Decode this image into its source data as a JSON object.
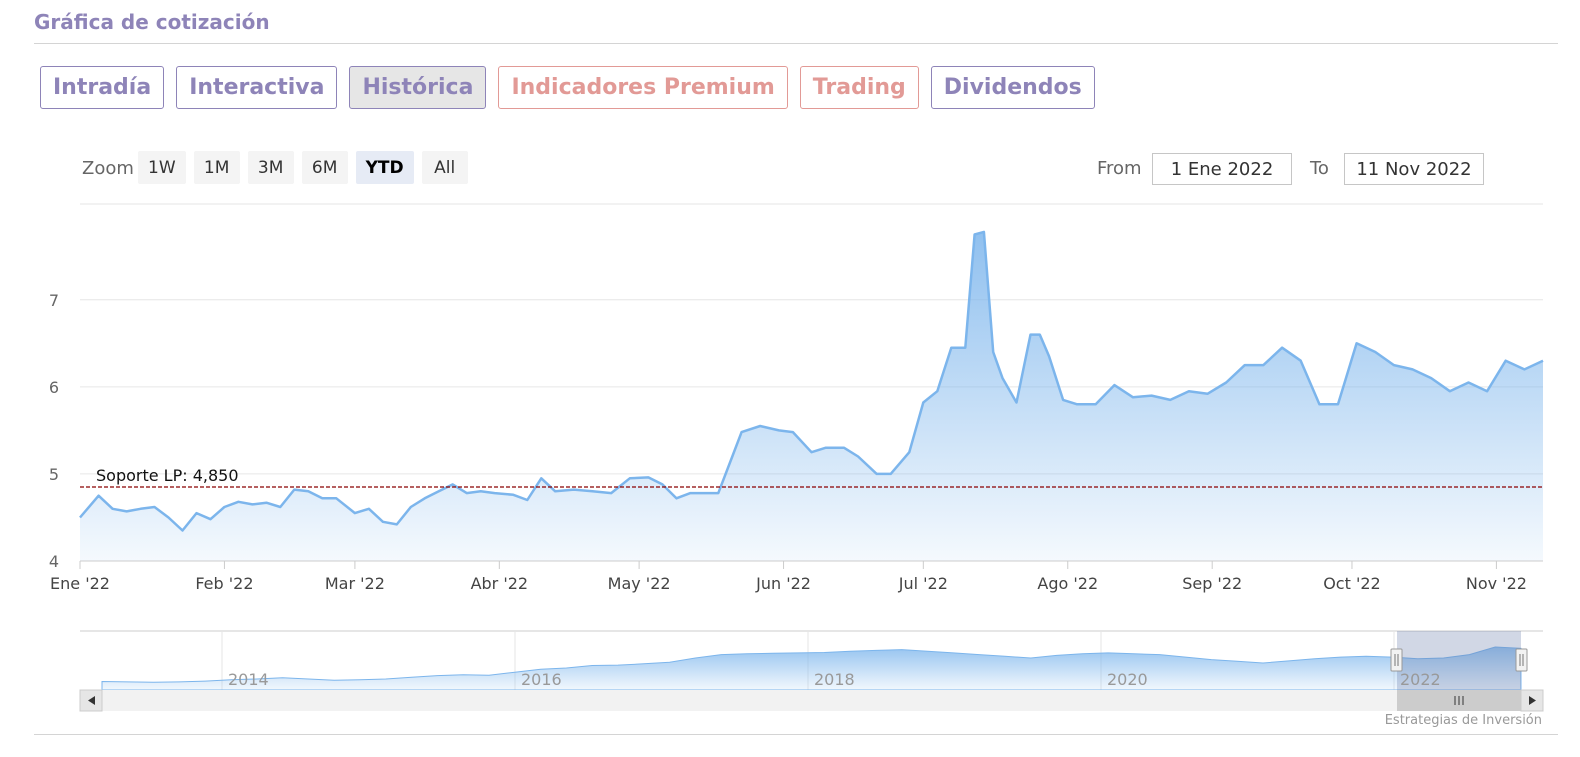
{
  "page": {
    "title": "Gráfica de cotización",
    "credit": "Estrategias de Inversión"
  },
  "tabs": [
    {
      "label": "Intradía",
      "active": false,
      "premium": false
    },
    {
      "label": "Interactiva",
      "active": false,
      "premium": false
    },
    {
      "label": "Histórica",
      "active": true,
      "premium": false
    },
    {
      "label": "Indicadores Premium",
      "active": false,
      "premium": true
    },
    {
      "label": "Trading",
      "active": false,
      "premium": true
    },
    {
      "label": "Dividendos",
      "active": false,
      "premium": false
    }
  ],
  "zoom": {
    "label": "Zoom",
    "options": [
      "1W",
      "1M",
      "3M",
      "6M",
      "YTD",
      "All"
    ],
    "selected": "YTD"
  },
  "range": {
    "from_label": "From",
    "from_value": "1 Ene 2022",
    "to_label": "To",
    "to_value": "11 Nov 2022"
  },
  "colors": {
    "accent": "#8e84b8",
    "premium": "#e29a96",
    "series": "#7cb5ec",
    "support_line": "#8b0000"
  },
  "chart_data": {
    "type": "area",
    "xlabel": "",
    "ylabel": "",
    "x_tick_labels": [
      "Ene '22",
      "Feb '22",
      "Mar '22",
      "Abr '22",
      "May '22",
      "Jun '22",
      "Jul '22",
      "Ago '22",
      "Sep '22",
      "Oct '22",
      "Nov '22"
    ],
    "y_tick_labels": [
      "4",
      "5",
      "6",
      "7"
    ],
    "ylim": [
      4,
      8.1
    ],
    "grid": true,
    "support": {
      "label": "Soporte LP: 4,850",
      "value": 4.85
    },
    "series": [
      {
        "x": [
          "2022-01-01",
          "2022-01-05",
          "2022-01-08",
          "2022-01-11",
          "2022-01-14",
          "2022-01-17",
          "2022-01-20",
          "2022-01-23",
          "2022-01-26",
          "2022-01-29",
          "2022-02-01",
          "2022-02-04",
          "2022-02-07",
          "2022-02-10",
          "2022-02-13",
          "2022-02-16",
          "2022-02-19",
          "2022-02-22",
          "2022-02-25",
          "2022-03-01",
          "2022-03-04",
          "2022-03-07",
          "2022-03-10",
          "2022-03-13",
          "2022-03-16",
          "2022-03-19",
          "2022-03-22",
          "2022-03-25",
          "2022-03-28",
          "2022-03-31",
          "2022-04-04",
          "2022-04-07",
          "2022-04-10",
          "2022-04-13",
          "2022-04-17",
          "2022-04-21",
          "2022-04-25",
          "2022-04-29",
          "2022-05-03",
          "2022-05-06",
          "2022-05-09",
          "2022-05-12",
          "2022-05-15",
          "2022-05-18",
          "2022-05-21",
          "2022-05-23",
          "2022-05-27",
          "2022-05-31",
          "2022-06-03",
          "2022-06-07",
          "2022-06-10",
          "2022-06-14",
          "2022-06-17",
          "2022-06-21",
          "2022-06-24",
          "2022-06-28",
          "2022-07-01",
          "2022-07-04",
          "2022-07-07",
          "2022-07-10",
          "2022-07-12",
          "2022-07-14",
          "2022-07-16",
          "2022-07-18",
          "2022-07-21",
          "2022-07-24",
          "2022-07-26",
          "2022-07-28",
          "2022-07-31",
          "2022-08-03",
          "2022-08-07",
          "2022-08-11",
          "2022-08-15",
          "2022-08-19",
          "2022-08-23",
          "2022-08-27",
          "2022-08-31",
          "2022-09-04",
          "2022-09-08",
          "2022-09-12",
          "2022-09-16",
          "2022-09-20",
          "2022-09-24",
          "2022-09-28",
          "2022-10-02",
          "2022-10-06",
          "2022-10-10",
          "2022-10-14",
          "2022-10-18",
          "2022-10-22",
          "2022-10-26",
          "2022-10-30",
          "2022-11-03",
          "2022-11-07",
          "2022-11-11"
        ],
        "values": [
          4.5,
          4.75,
          4.6,
          4.57,
          4.6,
          4.62,
          4.5,
          4.35,
          4.55,
          4.48,
          4.62,
          4.68,
          4.65,
          4.67,
          4.62,
          4.82,
          4.8,
          4.72,
          4.72,
          4.55,
          4.6,
          4.45,
          4.42,
          4.62,
          4.72,
          4.8,
          4.88,
          4.78,
          4.8,
          4.78,
          4.76,
          4.7,
          4.95,
          4.8,
          4.82,
          4.8,
          4.78,
          4.95,
          4.96,
          4.88,
          4.72,
          4.78,
          4.78,
          4.78,
          5.2,
          5.48,
          5.55,
          5.5,
          5.48,
          5.25,
          5.3,
          5.3,
          5.2,
          5.0,
          5.0,
          5.25,
          5.82,
          5.95,
          6.45,
          6.45,
          7.75,
          7.78,
          6.4,
          6.1,
          5.82,
          6.6,
          6.6,
          6.35,
          5.85,
          5.8,
          5.8,
          6.02,
          5.88,
          5.9,
          5.85,
          5.95,
          5.92,
          6.05,
          6.25,
          6.25,
          6.45,
          6.3,
          5.8,
          5.8,
          6.5,
          6.4,
          6.25,
          6.2,
          6.1,
          5.95,
          6.05,
          5.95,
          6.3,
          6.2,
          6.3
        ]
      }
    ],
    "navigator": {
      "x_tick_labels": [
        "2014",
        "2016",
        "2018",
        "2020",
        "2022"
      ]
    }
  }
}
